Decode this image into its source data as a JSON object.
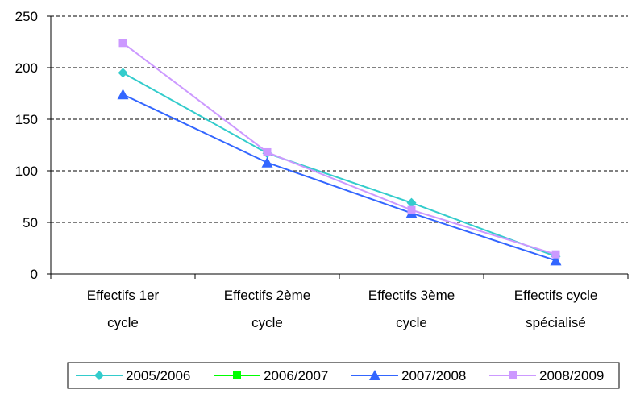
{
  "chart_data": {
    "type": "line",
    "categories": [
      [
        "Effectifs 1er",
        "cycle"
      ],
      [
        "Effectifs 2ème",
        "cycle"
      ],
      [
        "Effectifs 3ème",
        "cycle"
      ],
      [
        "Effectifs cycle",
        "spécialisé"
      ]
    ],
    "ylim": [
      0,
      250
    ],
    "yticks": [
      0,
      50,
      100,
      150,
      200,
      250
    ],
    "grid": true,
    "legend_position": "bottom",
    "series": [
      {
        "name": "2005/2006",
        "color": "#33CCCC",
        "marker": "diamond",
        "values": [
          195,
          117,
          69,
          17
        ]
      },
      {
        "name": "2006/2007",
        "color": "#00FF00",
        "marker": "square",
        "values": [
          null,
          null,
          null,
          null
        ]
      },
      {
        "name": "2007/2008",
        "color": "#3366FF",
        "marker": "triangle",
        "values": [
          174,
          108,
          59,
          13
        ]
      },
      {
        "name": "2008/2009",
        "color": "#CC99FF",
        "marker": "square",
        "values": [
          224,
          118,
          62,
          19
        ]
      }
    ]
  }
}
